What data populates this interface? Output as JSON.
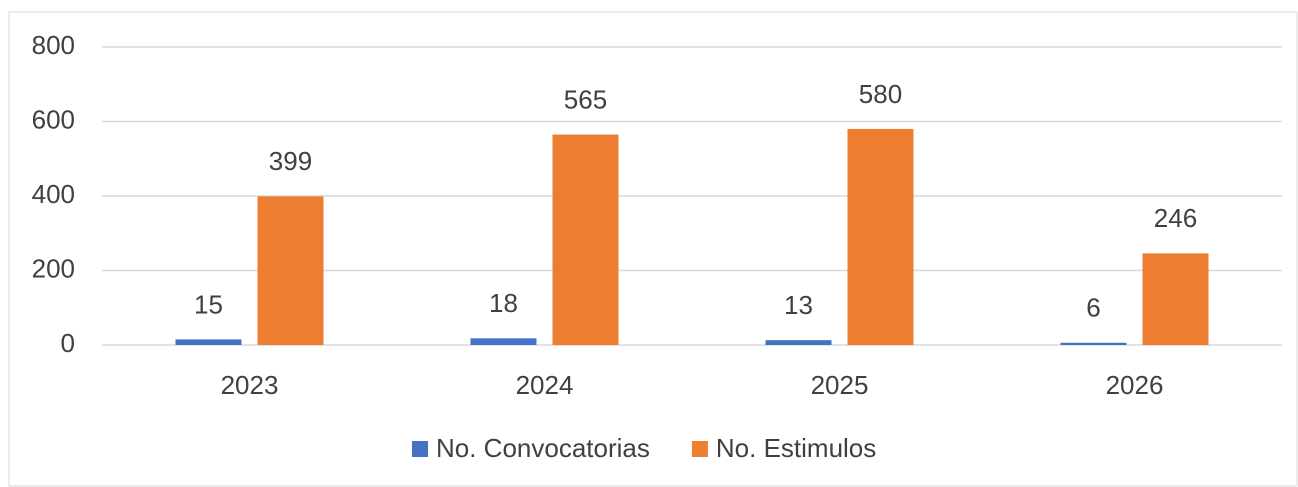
{
  "chart_data": {
    "type": "bar",
    "categories": [
      "2023",
      "2024",
      "2025",
      "2026"
    ],
    "series": [
      {
        "name": "No. Convocatorias",
        "color": "#4472c4",
        "values": [
          15,
          18,
          13,
          6
        ]
      },
      {
        "name": "No. Estimulos",
        "color": "#ed7d31",
        "values": [
          399,
          565,
          580,
          246
        ]
      }
    ],
    "ylim": [
      0,
      800
    ],
    "yticks": [
      0,
      200,
      400,
      600,
      800
    ],
    "grid": true,
    "legend": "bottom"
  }
}
